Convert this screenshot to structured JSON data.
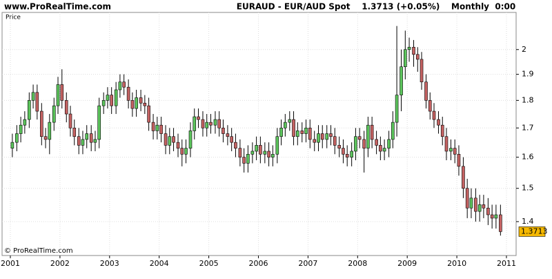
{
  "site": "www.ProRealTime.com",
  "header": "EURAUD - EUR/AUD Spot    1.3713 (+0.05%)    Monthly  0:00",
  "copyright": "© ProRealTime.com",
  "chart_data": {
    "type": "candlestick",
    "axis_label": "Price",
    "log_scale": true,
    "grid": true,
    "up_color": "#5cc45c",
    "down_color": "#c46262",
    "xlim": [
      2000.833,
      2011.195
    ],
    "xticks": [
      2001,
      2002,
      2003,
      2004,
      2005,
      2006,
      2007,
      2008,
      2009,
      2010,
      2011
    ],
    "ylim": [
      1.305,
      2.16
    ],
    "yticks": [
      1.4,
      1.5,
      1.6,
      1.7,
      1.8,
      1.9,
      2
    ],
    "x": [
      2001.04,
      2001.13,
      2001.21,
      2001.29,
      2001.38,
      2001.46,
      2001.54,
      2001.63,
      2001.71,
      2001.79,
      2001.88,
      2001.96,
      2002.04,
      2002.13,
      2002.21,
      2002.29,
      2002.38,
      2002.46,
      2002.54,
      2002.63,
      2002.71,
      2002.79,
      2002.88,
      2002.96,
      2003.04,
      2003.13,
      2003.21,
      2003.29,
      2003.38,
      2003.46,
      2003.54,
      2003.63,
      2003.71,
      2003.79,
      2003.88,
      2003.96,
      2004.04,
      2004.13,
      2004.21,
      2004.29,
      2004.38,
      2004.46,
      2004.54,
      2004.63,
      2004.71,
      2004.79,
      2004.88,
      2004.96,
      2005.04,
      2005.13,
      2005.21,
      2005.29,
      2005.38,
      2005.46,
      2005.54,
      2005.63,
      2005.71,
      2005.79,
      2005.88,
      2005.96,
      2006.04,
      2006.13,
      2006.21,
      2006.29,
      2006.38,
      2006.46,
      2006.54,
      2006.63,
      2006.71,
      2006.79,
      2006.88,
      2006.96,
      2007.04,
      2007.13,
      2007.21,
      2007.29,
      2007.38,
      2007.46,
      2007.54,
      2007.63,
      2007.71,
      2007.79,
      2007.88,
      2007.96,
      2008.04,
      2008.13,
      2008.21,
      2008.29,
      2008.38,
      2008.46,
      2008.54,
      2008.63,
      2008.71,
      2008.79,
      2008.88,
      2008.96,
      2009.04,
      2009.13,
      2009.21,
      2009.29,
      2009.38,
      2009.46,
      2009.54,
      2009.63,
      2009.71,
      2009.79,
      2009.88,
      2009.96,
      2010.04,
      2010.13,
      2010.21,
      2010.29,
      2010.38,
      2010.46,
      2010.54,
      2010.63,
      2010.71,
      2010.79,
      2010.88
    ],
    "open": [
      1.63,
      1.65,
      1.68,
      1.71,
      1.73,
      1.8,
      1.83,
      1.76,
      1.67,
      1.66,
      1.72,
      1.78,
      1.86,
      1.8,
      1.75,
      1.7,
      1.67,
      1.64,
      1.66,
      1.68,
      1.65,
      1.66,
      1.78,
      1.8,
      1.82,
      1.78,
      1.84,
      1.87,
      1.85,
      1.8,
      1.77,
      1.81,
      1.79,
      1.78,
      1.72,
      1.69,
      1.71,
      1.68,
      1.64,
      1.67,
      1.65,
      1.63,
      1.61,
      1.63,
      1.69,
      1.74,
      1.73,
      1.7,
      1.72,
      1.71,
      1.73,
      1.7,
      1.68,
      1.67,
      1.65,
      1.63,
      1.6,
      1.58,
      1.61,
      1.62,
      1.64,
      1.61,
      1.62,
      1.6,
      1.61,
      1.67,
      1.7,
      1.72,
      1.73,
      1.67,
      1.69,
      1.68,
      1.7,
      1.66,
      1.65,
      1.68,
      1.66,
      1.68,
      1.67,
      1.64,
      1.63,
      1.61,
      1.6,
      1.62,
      1.67,
      1.66,
      1.63,
      1.71,
      1.66,
      1.64,
      1.62,
      1.63,
      1.66,
      1.72,
      1.82,
      1.93,
      2.0,
      2.01,
      1.98,
      1.96,
      1.87,
      1.8,
      1.76,
      1.73,
      1.71,
      1.67,
      1.62,
      1.63,
      1.61,
      1.57,
      1.5,
      1.44,
      1.47,
      1.43,
      1.45,
      1.44,
      1.42,
      1.41,
      1.42
    ],
    "high": [
      1.68,
      1.71,
      1.74,
      1.76,
      1.83,
      1.86,
      1.86,
      1.79,
      1.7,
      1.75,
      1.81,
      1.89,
      1.92,
      1.83,
      1.78,
      1.73,
      1.7,
      1.69,
      1.71,
      1.71,
      1.69,
      1.81,
      1.83,
      1.85,
      1.85,
      1.87,
      1.9,
      1.9,
      1.88,
      1.83,
      1.84,
      1.84,
      1.82,
      1.81,
      1.75,
      1.74,
      1.74,
      1.71,
      1.7,
      1.7,
      1.68,
      1.66,
      1.66,
      1.72,
      1.77,
      1.77,
      1.76,
      1.75,
      1.75,
      1.76,
      1.76,
      1.73,
      1.71,
      1.7,
      1.68,
      1.66,
      1.63,
      1.64,
      1.65,
      1.67,
      1.67,
      1.65,
      1.65,
      1.64,
      1.7,
      1.73,
      1.75,
      1.76,
      1.76,
      1.72,
      1.72,
      1.73,
      1.73,
      1.69,
      1.71,
      1.71,
      1.71,
      1.71,
      1.7,
      1.67,
      1.66,
      1.64,
      1.65,
      1.7,
      1.7,
      1.69,
      1.74,
      1.74,
      1.69,
      1.67,
      1.66,
      1.69,
      1.76,
      2.1,
      2.0,
      2.08,
      2.05,
      2.04,
      2.01,
      1.99,
      1.9,
      1.83,
      1.79,
      1.76,
      1.74,
      1.7,
      1.66,
      1.66,
      1.64,
      1.6,
      1.53,
      1.5,
      1.5,
      1.48,
      1.48,
      1.47,
      1.45,
      1.45,
      1.45
    ],
    "low": [
      1.6,
      1.62,
      1.65,
      1.68,
      1.7,
      1.77,
      1.73,
      1.64,
      1.63,
      1.61,
      1.69,
      1.75,
      1.77,
      1.72,
      1.67,
      1.64,
      1.61,
      1.61,
      1.63,
      1.62,
      1.62,
      1.63,
      1.75,
      1.77,
      1.75,
      1.75,
      1.81,
      1.82,
      1.77,
      1.74,
      1.74,
      1.76,
      1.75,
      1.69,
      1.66,
      1.66,
      1.65,
      1.61,
      1.61,
      1.62,
      1.6,
      1.57,
      1.58,
      1.6,
      1.66,
      1.7,
      1.67,
      1.67,
      1.68,
      1.68,
      1.67,
      1.65,
      1.64,
      1.62,
      1.6,
      1.57,
      1.55,
      1.55,
      1.58,
      1.59,
      1.58,
      1.58,
      1.57,
      1.57,
      1.58,
      1.64,
      1.67,
      1.69,
      1.64,
      1.64,
      1.65,
      1.65,
      1.63,
      1.62,
      1.62,
      1.63,
      1.63,
      1.64,
      1.61,
      1.6,
      1.58,
      1.57,
      1.57,
      1.59,
      1.63,
      1.55,
      1.6,
      1.63,
      1.61,
      1.59,
      1.59,
      1.6,
      1.63,
      1.67,
      1.76,
      1.88,
      1.95,
      1.93,
      1.91,
      1.84,
      1.77,
      1.73,
      1.7,
      1.68,
      1.64,
      1.59,
      1.59,
      1.58,
      1.54,
      1.47,
      1.41,
      1.41,
      1.4,
      1.4,
      1.41,
      1.39,
      1.38,
      1.38,
      1.36
    ],
    "close": [
      1.65,
      1.68,
      1.71,
      1.73,
      1.8,
      1.83,
      1.76,
      1.67,
      1.66,
      1.72,
      1.78,
      1.86,
      1.8,
      1.75,
      1.7,
      1.67,
      1.64,
      1.66,
      1.68,
      1.65,
      1.66,
      1.78,
      1.8,
      1.82,
      1.78,
      1.84,
      1.87,
      1.85,
      1.8,
      1.77,
      1.81,
      1.79,
      1.78,
      1.72,
      1.69,
      1.71,
      1.68,
      1.64,
      1.67,
      1.65,
      1.63,
      1.61,
      1.63,
      1.69,
      1.74,
      1.73,
      1.7,
      1.72,
      1.71,
      1.73,
      1.7,
      1.68,
      1.67,
      1.65,
      1.63,
      1.6,
      1.58,
      1.61,
      1.62,
      1.64,
      1.61,
      1.62,
      1.6,
      1.61,
      1.67,
      1.7,
      1.72,
      1.73,
      1.67,
      1.69,
      1.68,
      1.7,
      1.66,
      1.65,
      1.68,
      1.66,
      1.68,
      1.67,
      1.64,
      1.63,
      1.61,
      1.6,
      1.62,
      1.67,
      1.66,
      1.63,
      1.71,
      1.66,
      1.64,
      1.62,
      1.63,
      1.66,
      1.72,
      1.82,
      1.93,
      2.0,
      2.01,
      1.98,
      1.96,
      1.87,
      1.8,
      1.76,
      1.73,
      1.71,
      1.67,
      1.62,
      1.63,
      1.61,
      1.57,
      1.5,
      1.44,
      1.47,
      1.43,
      1.45,
      1.44,
      1.42,
      1.41,
      1.42,
      1.3713
    ]
  }
}
